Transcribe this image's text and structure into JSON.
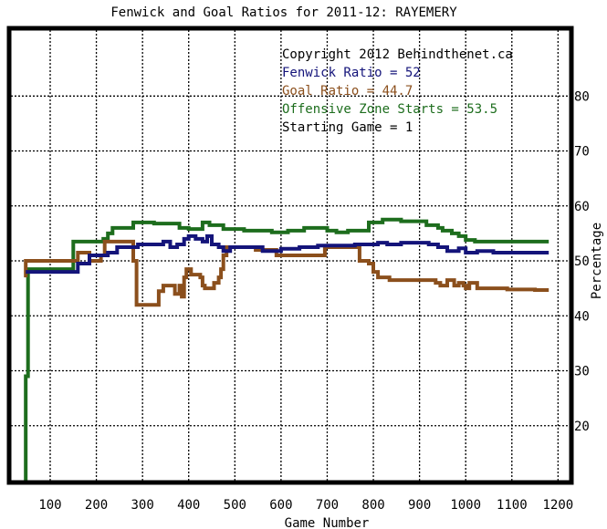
{
  "chart_data": {
    "type": "line",
    "title": "Fenwick and Goal Ratios for 2011-12: RAYEMERY",
    "xlabel": "Game Number",
    "ylabel": "Percentage",
    "xlim": [
      15,
      1225
    ],
    "ylim": [
      10,
      92
    ],
    "x_ticks": [
      100,
      200,
      300,
      400,
      500,
      600,
      700,
      800,
      900,
      1000,
      1100,
      1200
    ],
    "y_ticks": [
      20,
      30,
      40,
      50,
      60,
      70,
      80
    ],
    "y_axis_side": "right",
    "grid": true,
    "annotations": [
      {
        "text": "Copyright 2012 Behindthenet.ca",
        "color": "#000000"
      },
      {
        "text": "Fenwick Ratio = 52",
        "color": "#14147a"
      },
      {
        "text": "Goal Ratio = 44.7",
        "color": "#8b4f1c"
      },
      {
        "text": "Offensive Zone Starts = 53.5",
        "color": "#1d6d1d"
      },
      {
        "text": "Starting Game = 1",
        "color": "#000000"
      }
    ],
    "series": [
      {
        "name": "Fenwick Ratio",
        "color": "#14147a",
        "points": [
          [
            47,
            48
          ],
          [
            160,
            48
          ],
          [
            160,
            49.5
          ],
          [
            185,
            49.5
          ],
          [
            185,
            51
          ],
          [
            225,
            51
          ],
          [
            225,
            51.5
          ],
          [
            245,
            51.5
          ],
          [
            245,
            52.5
          ],
          [
            290,
            52.5
          ],
          [
            290,
            53
          ],
          [
            345,
            53
          ],
          [
            345,
            53.5
          ],
          [
            360,
            53.5
          ],
          [
            360,
            52.5
          ],
          [
            375,
            52.5
          ],
          [
            375,
            53
          ],
          [
            390,
            53
          ],
          [
            390,
            54
          ],
          [
            400,
            54
          ],
          [
            400,
            54.5
          ],
          [
            415,
            54.5
          ],
          [
            415,
            54
          ],
          [
            430,
            54
          ],
          [
            430,
            53.5
          ],
          [
            440,
            53.5
          ],
          [
            440,
            54.5
          ],
          [
            450,
            54.5
          ],
          [
            450,
            53
          ],
          [
            465,
            53
          ],
          [
            465,
            52.5
          ],
          [
            475,
            52.5
          ],
          [
            475,
            51.8
          ],
          [
            490,
            51.8
          ],
          [
            490,
            52.5
          ],
          [
            560,
            52.5
          ],
          [
            560,
            51.8
          ],
          [
            600,
            51.8
          ],
          [
            600,
            52.2
          ],
          [
            640,
            52.2
          ],
          [
            640,
            52.5
          ],
          [
            680,
            52.5
          ],
          [
            680,
            52.8
          ],
          [
            760,
            52.8
          ],
          [
            760,
            53
          ],
          [
            810,
            53
          ],
          [
            810,
            53.3
          ],
          [
            830,
            53.3
          ],
          [
            830,
            53
          ],
          [
            860,
            53
          ],
          [
            860,
            53.3
          ],
          [
            920,
            53.3
          ],
          [
            920,
            53
          ],
          [
            940,
            53
          ],
          [
            940,
            52.5
          ],
          [
            960,
            52.5
          ],
          [
            960,
            51.8
          ],
          [
            985,
            51.8
          ],
          [
            985,
            52.3
          ],
          [
            1000,
            52.3
          ],
          [
            1000,
            51.5
          ],
          [
            1025,
            51.5
          ],
          [
            1025,
            51.8
          ],
          [
            1060,
            51.8
          ],
          [
            1060,
            51.5
          ],
          [
            1180,
            51.5
          ]
        ]
      },
      {
        "name": "Goal Ratio",
        "color": "#8b4f1c",
        "points": [
          [
            47,
            47
          ],
          [
            47,
            50
          ],
          [
            160,
            50
          ],
          [
            160,
            51.5
          ],
          [
            185,
            51.5
          ],
          [
            185,
            50
          ],
          [
            210,
            50
          ],
          [
            210,
            51
          ],
          [
            218,
            51
          ],
          [
            218,
            53.5
          ],
          [
            280,
            53.5
          ],
          [
            280,
            50
          ],
          [
            287,
            50
          ],
          [
            287,
            42
          ],
          [
            335,
            42
          ],
          [
            335,
            44.5
          ],
          [
            345,
            44.5
          ],
          [
            345,
            45.5
          ],
          [
            370,
            45.5
          ],
          [
            370,
            44
          ],
          [
            380,
            44
          ],
          [
            380,
            45.5
          ],
          [
            385,
            45.5
          ],
          [
            385,
            43.5
          ],
          [
            390,
            43.5
          ],
          [
            390,
            47
          ],
          [
            395,
            47
          ],
          [
            395,
            48.5
          ],
          [
            405,
            48.5
          ],
          [
            405,
            47.5
          ],
          [
            425,
            47.5
          ],
          [
            425,
            47
          ],
          [
            430,
            47
          ],
          [
            430,
            45.5
          ],
          [
            435,
            45.5
          ],
          [
            435,
            45
          ],
          [
            455,
            45
          ],
          [
            455,
            46
          ],
          [
            465,
            46
          ],
          [
            465,
            47
          ],
          [
            470,
            47
          ],
          [
            470,
            48.5
          ],
          [
            475,
            48.5
          ],
          [
            475,
            51
          ],
          [
            482,
            51
          ],
          [
            482,
            52.5
          ],
          [
            545,
            52.5
          ],
          [
            545,
            52
          ],
          [
            590,
            52
          ],
          [
            590,
            51
          ],
          [
            695,
            51
          ],
          [
            695,
            52.5
          ],
          [
            770,
            52.5
          ],
          [
            770,
            50
          ],
          [
            790,
            50
          ],
          [
            790,
            49.5
          ],
          [
            800,
            49.5
          ],
          [
            800,
            48
          ],
          [
            810,
            48
          ],
          [
            810,
            47
          ],
          [
            835,
            47
          ],
          [
            835,
            46.5
          ],
          [
            935,
            46.5
          ],
          [
            935,
            46
          ],
          [
            945,
            46
          ],
          [
            945,
            45.5
          ],
          [
            960,
            45.5
          ],
          [
            960,
            46.5
          ],
          [
            975,
            46.5
          ],
          [
            975,
            45.5
          ],
          [
            985,
            45.5
          ],
          [
            985,
            46
          ],
          [
            995,
            46
          ],
          [
            995,
            45.5
          ],
          [
            1000,
            45.5
          ],
          [
            1000,
            45
          ],
          [
            1008,
            45
          ],
          [
            1008,
            46
          ],
          [
            1025,
            46
          ],
          [
            1025,
            45
          ],
          [
            1090,
            45
          ],
          [
            1090,
            44.8
          ],
          [
            1150,
            44.8
          ],
          [
            1150,
            44.7
          ],
          [
            1180,
            44.7
          ]
        ]
      },
      {
        "name": "Offensive Zone Starts",
        "color": "#1d6d1d",
        "points": [
          [
            47,
            10
          ],
          [
            47,
            29
          ],
          [
            52,
            29
          ],
          [
            52,
            48.5
          ],
          [
            150,
            48.5
          ],
          [
            150,
            53.5
          ],
          [
            215,
            53.5
          ],
          [
            215,
            54
          ],
          [
            225,
            54
          ],
          [
            225,
            55
          ],
          [
            235,
            55
          ],
          [
            235,
            56
          ],
          [
            280,
            56
          ],
          [
            280,
            57
          ],
          [
            325,
            57
          ],
          [
            325,
            56.8
          ],
          [
            380,
            56.8
          ],
          [
            380,
            56
          ],
          [
            400,
            56
          ],
          [
            400,
            55.8
          ],
          [
            430,
            55.8
          ],
          [
            430,
            57
          ],
          [
            445,
            57
          ],
          [
            445,
            56.5
          ],
          [
            475,
            56.5
          ],
          [
            475,
            55.8
          ],
          [
            520,
            55.8
          ],
          [
            520,
            55.5
          ],
          [
            580,
            55.5
          ],
          [
            580,
            55.2
          ],
          [
            615,
            55.2
          ],
          [
            615,
            55.5
          ],
          [
            650,
            55.5
          ],
          [
            650,
            56
          ],
          [
            700,
            56
          ],
          [
            700,
            55.5
          ],
          [
            720,
            55.5
          ],
          [
            720,
            55.2
          ],
          [
            745,
            55.2
          ],
          [
            745,
            55.5
          ],
          [
            790,
            55.5
          ],
          [
            790,
            57
          ],
          [
            820,
            57
          ],
          [
            820,
            57.5
          ],
          [
            860,
            57.5
          ],
          [
            860,
            57.2
          ],
          [
            915,
            57.2
          ],
          [
            915,
            56.5
          ],
          [
            940,
            56.5
          ],
          [
            940,
            56
          ],
          [
            950,
            56
          ],
          [
            950,
            55.5
          ],
          [
            970,
            55.5
          ],
          [
            970,
            55
          ],
          [
            985,
            55
          ],
          [
            985,
            54.5
          ],
          [
            1000,
            54.5
          ],
          [
            1000,
            53.8
          ],
          [
            1020,
            53.8
          ],
          [
            1020,
            53.5
          ],
          [
            1180,
            53.5
          ]
        ]
      }
    ]
  }
}
